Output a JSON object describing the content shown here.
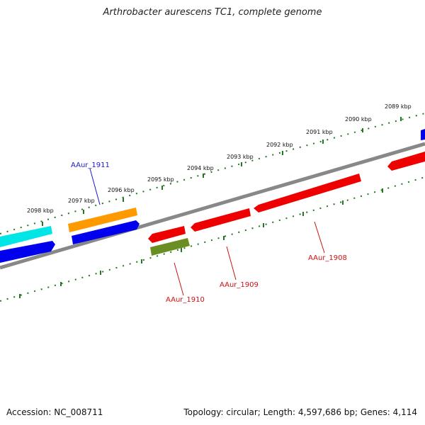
{
  "title": "Arthrobacter aurescens TC1, complete genome",
  "accession_text": "Accession: NC_008711",
  "summary_text": "Topology: circular; Length: 4,597,686 bp; Genes: 4,114",
  "colors": {
    "backbone": "#888888",
    "ticks": "#227722",
    "forward_label": "#1a1acc",
    "reverse_label": "#cc1111"
  },
  "scale_labels": [
    "2089 kbp",
    "2090 kbp",
    "2091 kbp",
    "2092 kbp",
    "2093 kbp",
    "2094 kbp",
    "2095 kbp",
    "2096 kbp",
    "2097 kbp",
    "2098 kbp"
  ],
  "gene_labels": [
    {
      "text": "AAur_1911",
      "strand": "forward"
    },
    {
      "text": "AAur_1910",
      "strand": "reverse"
    },
    {
      "text": "AAur_1909",
      "strand": "reverse"
    },
    {
      "text": "AAur_1908",
      "strand": "reverse"
    }
  ],
  "feature_colors": {
    "cyan": "#00e5e5",
    "blue": "#0000ee",
    "orange": "#ff9900",
    "red": "#ee0000",
    "olive": "#6b8e23"
  }
}
